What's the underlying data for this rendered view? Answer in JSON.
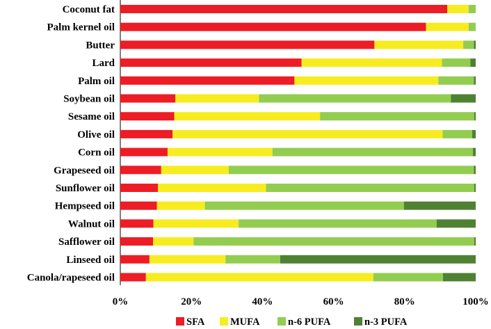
{
  "chart_data": {
    "type": "bar",
    "orientation": "horizontal",
    "stacked": true,
    "title": "",
    "xlabel": "",
    "ylabel": "",
    "xlim": [
      0,
      100
    ],
    "x_ticks": [
      "0%",
      "20%",
      "40%",
      "60%",
      "80%",
      "100%"
    ],
    "legend_position": "bottom",
    "categories": [
      "Coconut fat",
      "Palm kernel oil",
      "Butter",
      "Lard",
      "Palm oil",
      "Soybean oil",
      "Sesame oil",
      "Olive oil",
      "Corn oil",
      "Grapeseed oil",
      "Sunflower oil",
      "Hempseed oil",
      "Walnut oil",
      "Safflower oil",
      "Linseed oil",
      "Canola/rapeseed oil"
    ],
    "series": [
      {
        "name": "SFA",
        "color": "#ee1c24",
        "values": [
          92,
          86,
          71.5,
          51,
          49,
          15.5,
          15.2,
          14.7,
          13.3,
          11.5,
          10.6,
          10.3,
          9.3,
          9.2,
          8.2,
          7.2
        ]
      },
      {
        "name": "MUFA",
        "color": "#f7ec20",
        "values": [
          6,
          12,
          25,
          39.5,
          40.5,
          23.5,
          41,
          76,
          29.5,
          19,
          30.4,
          13.5,
          24,
          11.4,
          21.4,
          64
        ]
      },
      {
        "name": "n-6 PUFA",
        "color": "#92cd50",
        "values": [
          2,
          2,
          3,
          8,
          10,
          54,
          43.4,
          8.3,
          56.4,
          69,
          58.6,
          56,
          55.7,
          79,
          15.4,
          19.6
        ]
      },
      {
        "name": "n-3 PUFA",
        "color": "#4f8132",
        "values": [
          0,
          0,
          0.5,
          1.5,
          0.5,
          7,
          0.4,
          1,
          0.8,
          0.5,
          0.4,
          20.2,
          11,
          0.4,
          55,
          9.2
        ]
      }
    ]
  }
}
